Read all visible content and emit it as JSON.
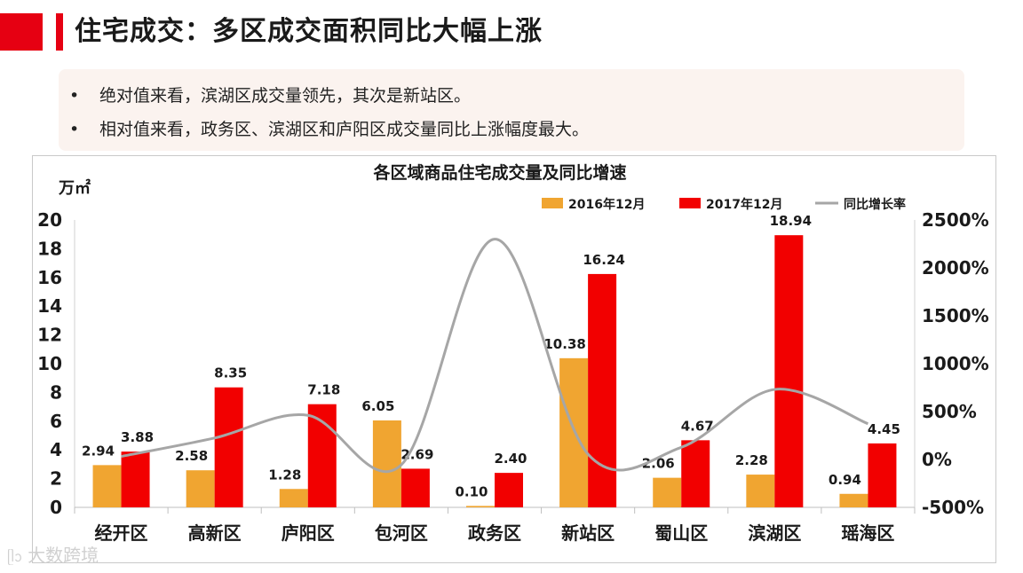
{
  "header": {
    "title": "住宅成交：多区成交面积同比大幅上涨"
  },
  "summary": {
    "bullet_symbol": "•",
    "points": [
      "绝对值来看，滨湖区成交量领先，其次是新站区。",
      "相对值来看，政务区、滨湖区和庐阳区成交量同比上涨幅度最大。"
    ]
  },
  "watermark": {
    "logo": "ᥫᩣ",
    "text": "大数跨境"
  },
  "colors": {
    "accent": "#e60012",
    "series2016": "#f0a531",
    "series2017": "#f20000",
    "growth": "#a6a6a6"
  },
  "chart_data": {
    "type": "bar",
    "title": "各区域商品住宅成交量及同比增速",
    "ylabel": "万㎡",
    "ylim": [
      0,
      20
    ],
    "yticks": [
      "0",
      "2",
      "4",
      "6",
      "8",
      "10",
      "12",
      "14",
      "16",
      "18",
      "20"
    ],
    "y2lim": [
      -500,
      2500
    ],
    "y2ticks": [
      "-500%",
      "0%",
      "500%",
      "1000%",
      "1500%",
      "2000%",
      "2500%"
    ],
    "categories": [
      "经开区",
      "高新区",
      "庐阳区",
      "包河区",
      "政务区",
      "新站区",
      "蜀山区",
      "滨湖区",
      "瑶海区"
    ],
    "series": [
      {
        "name": "2016年12月",
        "type": "bar",
        "values": [
          2.94,
          2.58,
          1.28,
          6.05,
          0.1,
          10.38,
          2.06,
          2.28,
          0.94
        ],
        "labels": [
          "2.94",
          "2.58",
          "1.28",
          "6.05",
          "0.10",
          "10.38",
          "2.06",
          "2.28",
          "0.94"
        ]
      },
      {
        "name": "2017年12月",
        "type": "bar",
        "values": [
          3.88,
          8.35,
          7.18,
          2.69,
          2.4,
          16.24,
          4.67,
          18.94,
          4.45
        ],
        "labels": [
          "3.88",
          "8.35",
          "7.18",
          "2.69",
          "2.40",
          "16.24",
          "4.67",
          "18.94",
          "4.45"
        ]
      },
      {
        "name": "同比增长率",
        "type": "line",
        "axis": "secondary",
        "values": [
          32,
          224,
          461,
          -56,
          2300,
          56,
          127,
          731,
          373
        ]
      }
    ],
    "legend": [
      "2016年12月",
      "2017年12月",
      "同比增长率"
    ]
  }
}
